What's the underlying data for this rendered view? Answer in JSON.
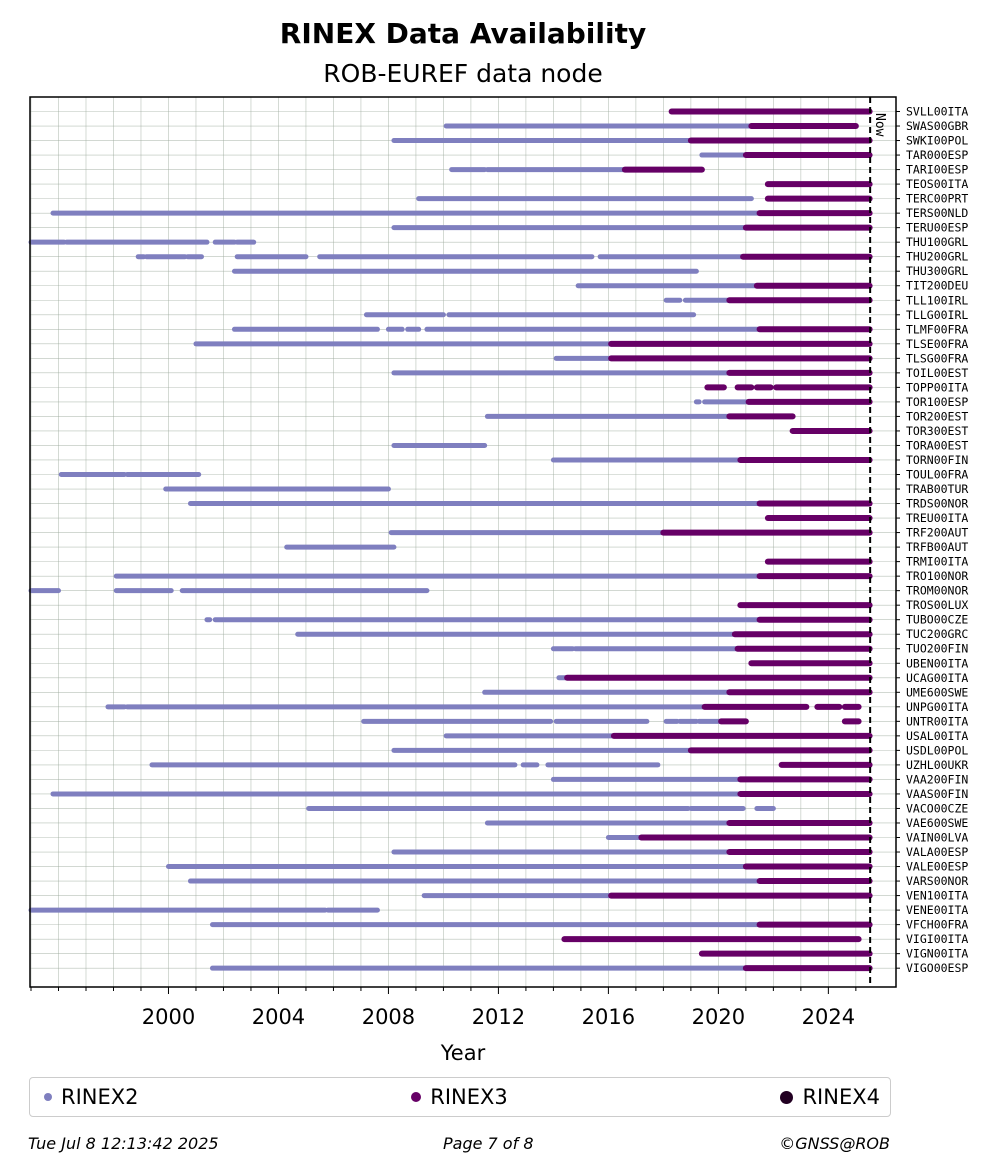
{
  "title": "RINEX Data Availability",
  "subtitle": "ROB-EUREF data node",
  "legend": [
    {
      "label": "RINEX2",
      "color": "#7f7fbf"
    },
    {
      "label": "RINEX3",
      "color": "#660066"
    },
    {
      "label": "RINEX4",
      "color": "#220022"
    }
  ],
  "footer": {
    "date": "Tue Jul  8 12:13:42 2025",
    "page": "Page 7 of 8",
    "copyright": "©GNSS@ROB"
  },
  "chart_data": {
    "type": "timeline",
    "xlabel": "Year",
    "xlim": [
      1995.0,
      2025.5
    ],
    "xticks": [
      2000,
      2004,
      2008,
      2012,
      2016,
      2020,
      2024
    ],
    "now": 2025.52,
    "now_label": "Now",
    "colors": {
      "RINEX2": "#7f7fbf",
      "RINEX3": "#660066",
      "RINEX4": "#220022"
    },
    "stations": [
      {
        "name": "SVLL00ITA",
        "segments": [
          {
            "v": "RINEX3",
            "start": 2018.3,
            "end": 2025.5
          }
        ]
      },
      {
        "name": "SWAS00GBR",
        "segments": [
          {
            "v": "RINEX2",
            "start": 2010.1,
            "end": 2021.2
          },
          {
            "v": "RINEX3",
            "start": 2021.2,
            "end": 2025.0
          }
        ]
      },
      {
        "name": "SWKI00POL",
        "segments": [
          {
            "v": "RINEX2",
            "start": 2008.2,
            "end": 2019.0
          },
          {
            "v": "RINEX3",
            "start": 2019.0,
            "end": 2025.5
          }
        ]
      },
      {
        "name": "TAR000ESP",
        "segments": [
          {
            "v": "RINEX2",
            "start": 2019.4,
            "end": 2021.0
          },
          {
            "v": "RINEX3",
            "start": 2021.0,
            "end": 2025.5
          }
        ]
      },
      {
        "name": "TARI00ESP",
        "segments": [
          {
            "v": "RINEX2",
            "start": 2010.3,
            "end": 2011.5
          },
          {
            "v": "RINEX2",
            "start": 2011.6,
            "end": 2016.6
          },
          {
            "v": "RINEX3",
            "start": 2016.6,
            "end": 2019.4
          }
        ]
      },
      {
        "name": "TEOS00ITA",
        "segments": [
          {
            "v": "RINEX3",
            "start": 2021.8,
            "end": 2025.5
          }
        ]
      },
      {
        "name": "TERC00PRT",
        "segments": [
          {
            "v": "RINEX2",
            "start": 2009.1,
            "end": 2021.2
          },
          {
            "v": "RINEX3",
            "start": 2021.8,
            "end": 2025.5
          }
        ]
      },
      {
        "name": "TERS00NLD",
        "segments": [
          {
            "v": "RINEX2",
            "start": 1995.8,
            "end": 2021.5
          },
          {
            "v": "RINEX3",
            "start": 2021.5,
            "end": 2025.5
          }
        ]
      },
      {
        "name": "TERU00ESP",
        "segments": [
          {
            "v": "RINEX2",
            "start": 2008.2,
            "end": 2021.0
          },
          {
            "v": "RINEX3",
            "start": 2021.0,
            "end": 2025.5
          }
        ]
      },
      {
        "name": "THU100GRL",
        "segments": [
          {
            "v": "RINEX2",
            "start": 1995.0,
            "end": 1996.2
          },
          {
            "v": "RINEX2",
            "start": 1996.3,
            "end": 2001.4
          },
          {
            "v": "RINEX2",
            "start": 2001.7,
            "end": 2002.4
          },
          {
            "v": "RINEX2",
            "start": 2002.5,
            "end": 2003.1
          }
        ]
      },
      {
        "name": "THU200GRL",
        "segments": [
          {
            "v": "RINEX2",
            "start": 1998.9,
            "end": 1999.1
          },
          {
            "v": "RINEX2",
            "start": 1999.2,
            "end": 2000.6
          },
          {
            "v": "RINEX2",
            "start": 2000.7,
            "end": 2001.2
          },
          {
            "v": "RINEX2",
            "start": 2002.5,
            "end": 2005.0
          },
          {
            "v": "RINEX2",
            "start": 2005.5,
            "end": 2015.4
          },
          {
            "v": "RINEX2",
            "start": 2015.7,
            "end": 2020.9
          },
          {
            "v": "RINEX3",
            "start": 2020.9,
            "end": 2025.5
          }
        ]
      },
      {
        "name": "THU300GRL",
        "segments": [
          {
            "v": "RINEX2",
            "start": 2002.4,
            "end": 2019.2
          }
        ]
      },
      {
        "name": "TIT200DEU",
        "segments": [
          {
            "v": "RINEX2",
            "start": 2014.9,
            "end": 2021.4
          },
          {
            "v": "RINEX3",
            "start": 2021.4,
            "end": 2025.5
          }
        ]
      },
      {
        "name": "TLL100IRL",
        "segments": [
          {
            "v": "RINEX2",
            "start": 2018.1,
            "end": 2018.6
          },
          {
            "v": "RINEX2",
            "start": 2018.8,
            "end": 2020.4
          },
          {
            "v": "RINEX3",
            "start": 2020.4,
            "end": 2025.5
          }
        ]
      },
      {
        "name": "TLLG00IRL",
        "segments": [
          {
            "v": "RINEX2",
            "start": 2007.2,
            "end": 2010.0
          },
          {
            "v": "RINEX2",
            "start": 2010.2,
            "end": 2019.1
          }
        ]
      },
      {
        "name": "TLMF00FRA",
        "segments": [
          {
            "v": "RINEX2",
            "start": 2002.4,
            "end": 2007.6
          },
          {
            "v": "RINEX2",
            "start": 2008.0,
            "end": 2008.5
          },
          {
            "v": "RINEX2",
            "start": 2008.7,
            "end": 2009.1
          },
          {
            "v": "RINEX2",
            "start": 2009.4,
            "end": 2021.5
          },
          {
            "v": "RINEX3",
            "start": 2021.5,
            "end": 2025.5
          }
        ]
      },
      {
        "name": "TLSE00FRA",
        "segments": [
          {
            "v": "RINEX2",
            "start": 2001.0,
            "end": 2016.1
          },
          {
            "v": "RINEX3",
            "start": 2016.1,
            "end": 2025.5
          }
        ]
      },
      {
        "name": "TLSG00FRA",
        "segments": [
          {
            "v": "RINEX2",
            "start": 2014.1,
            "end": 2016.1
          },
          {
            "v": "RINEX3",
            "start": 2016.1,
            "end": 2025.5
          }
        ]
      },
      {
        "name": "TOIL00EST",
        "segments": [
          {
            "v": "RINEX2",
            "start": 2008.2,
            "end": 2020.4
          },
          {
            "v": "RINEX3",
            "start": 2020.4,
            "end": 2025.5
          }
        ]
      },
      {
        "name": "TOPP00ITA",
        "segments": [
          {
            "v": "RINEX3",
            "start": 2019.6,
            "end": 2020.2
          },
          {
            "v": "RINEX3",
            "start": 2020.7,
            "end": 2021.2
          },
          {
            "v": "RINEX3",
            "start": 2021.4,
            "end": 2021.9
          },
          {
            "v": "RINEX3",
            "start": 2022.1,
            "end": 2025.5
          }
        ]
      },
      {
        "name": "TOR100ESP",
        "segments": [
          {
            "v": "RINEX2",
            "start": 2019.2,
            "end": 2019.3
          },
          {
            "v": "RINEX2",
            "start": 2019.5,
            "end": 2021.1
          },
          {
            "v": "RINEX3",
            "start": 2021.1,
            "end": 2025.5
          }
        ]
      },
      {
        "name": "TOR200EST",
        "segments": [
          {
            "v": "RINEX2",
            "start": 2011.6,
            "end": 2020.4
          },
          {
            "v": "RINEX3",
            "start": 2020.4,
            "end": 2022.7
          }
        ]
      },
      {
        "name": "TOR300EST",
        "segments": [
          {
            "v": "RINEX3",
            "start": 2022.7,
            "end": 2025.5
          }
        ]
      },
      {
        "name": "TORA00EST",
        "segments": [
          {
            "v": "RINEX2",
            "start": 2008.2,
            "end": 2011.5
          }
        ]
      },
      {
        "name": "TORN00FIN",
        "segments": [
          {
            "v": "RINEX2",
            "start": 2014.0,
            "end": 2020.8
          },
          {
            "v": "RINEX3",
            "start": 2020.8,
            "end": 2025.5
          }
        ]
      },
      {
        "name": "TOUL00FRA",
        "segments": [
          {
            "v": "RINEX2",
            "start": 1996.1,
            "end": 1998.4
          },
          {
            "v": "RINEX2",
            "start": 1998.5,
            "end": 2001.1
          }
        ]
      },
      {
        "name": "TRAB00TUR",
        "segments": [
          {
            "v": "RINEX2",
            "start": 1999.9,
            "end": 2008.0
          }
        ]
      },
      {
        "name": "TRDS00NOR",
        "segments": [
          {
            "v": "RINEX2",
            "start": 2000.8,
            "end": 2021.5
          },
          {
            "v": "RINEX3",
            "start": 2021.5,
            "end": 2025.5
          }
        ]
      },
      {
        "name": "TREU00ITA",
        "segments": [
          {
            "v": "RINEX3",
            "start": 2021.8,
            "end": 2025.5
          }
        ]
      },
      {
        "name": "TRF200AUT",
        "segments": [
          {
            "v": "RINEX2",
            "start": 2008.1,
            "end": 2018.0
          },
          {
            "v": "RINEX3",
            "start": 2018.0,
            "end": 2025.5
          }
        ]
      },
      {
        "name": "TRFB00AUT",
        "segments": [
          {
            "v": "RINEX2",
            "start": 2004.3,
            "end": 2008.2
          }
        ]
      },
      {
        "name": "TRMI00ITA",
        "segments": [
          {
            "v": "RINEX3",
            "start": 2021.8,
            "end": 2025.5
          }
        ]
      },
      {
        "name": "TRO100NOR",
        "segments": [
          {
            "v": "RINEX2",
            "start": 1998.1,
            "end": 2021.5
          },
          {
            "v": "RINEX3",
            "start": 2021.5,
            "end": 2025.5
          }
        ]
      },
      {
        "name": "TROM00NOR",
        "segments": [
          {
            "v": "RINEX2",
            "start": 1995.0,
            "end": 1996.0
          },
          {
            "v": "RINEX2",
            "start": 1998.1,
            "end": 2000.1
          },
          {
            "v": "RINEX2",
            "start": 2000.5,
            "end": 2009.4
          }
        ]
      },
      {
        "name": "TROS00LUX",
        "segments": [
          {
            "v": "RINEX3",
            "start": 2020.8,
            "end": 2025.5
          }
        ]
      },
      {
        "name": "TUBO00CZE",
        "segments": [
          {
            "v": "RINEX2",
            "start": 2001.4,
            "end": 2001.5
          },
          {
            "v": "RINEX2",
            "start": 2001.7,
            "end": 2021.5
          },
          {
            "v": "RINEX3",
            "start": 2021.5,
            "end": 2025.5
          }
        ]
      },
      {
        "name": "TUC200GRC",
        "segments": [
          {
            "v": "RINEX2",
            "start": 2004.7,
            "end": 2020.6
          },
          {
            "v": "RINEX3",
            "start": 2020.6,
            "end": 2025.5
          }
        ]
      },
      {
        "name": "TUO200FIN",
        "segments": [
          {
            "v": "RINEX2",
            "start": 2014.0,
            "end": 2014.7
          },
          {
            "v": "RINEX2",
            "start": 2014.8,
            "end": 2020.7
          },
          {
            "v": "RINEX3",
            "start": 2020.7,
            "end": 2025.5
          }
        ]
      },
      {
        "name": "UBEN00ITA",
        "segments": [
          {
            "v": "RINEX3",
            "start": 2021.2,
            "end": 2025.5
          }
        ]
      },
      {
        "name": "UCAG00ITA",
        "segments": [
          {
            "v": "RINEX2",
            "start": 2014.2,
            "end": 2014.5
          },
          {
            "v": "RINEX3",
            "start": 2014.5,
            "end": 2025.5
          }
        ]
      },
      {
        "name": "UME600SWE",
        "segments": [
          {
            "v": "RINEX2",
            "start": 2011.5,
            "end": 2020.4
          },
          {
            "v": "RINEX3",
            "start": 2020.4,
            "end": 2025.5
          }
        ]
      },
      {
        "name": "UNPG00ITA",
        "segments": [
          {
            "v": "RINEX2",
            "start": 1997.8,
            "end": 1998.4
          },
          {
            "v": "RINEX2",
            "start": 1998.5,
            "end": 2019.5
          },
          {
            "v": "RINEX3",
            "start": 2019.5,
            "end": 2023.2
          },
          {
            "v": "RINEX3",
            "start": 2023.6,
            "end": 2024.4
          },
          {
            "v": "RINEX3",
            "start": 2024.6,
            "end": 2025.1
          }
        ]
      },
      {
        "name": "UNTR00ITA",
        "segments": [
          {
            "v": "RINEX2",
            "start": 2007.1,
            "end": 2013.9
          },
          {
            "v": "RINEX2",
            "start": 2014.1,
            "end": 2017.4
          },
          {
            "v": "RINEX2",
            "start": 2018.1,
            "end": 2018.5
          },
          {
            "v": "RINEX2",
            "start": 2018.6,
            "end": 2019.2
          },
          {
            "v": "RINEX2",
            "start": 2019.3,
            "end": 2020.1
          },
          {
            "v": "RINEX3",
            "start": 2020.1,
            "end": 2021.0
          },
          {
            "v": "RINEX3",
            "start": 2024.6,
            "end": 2025.1
          }
        ]
      },
      {
        "name": "USAL00ITA",
        "segments": [
          {
            "v": "RINEX2",
            "start": 2010.1,
            "end": 2016.2
          },
          {
            "v": "RINEX3",
            "start": 2016.2,
            "end": 2025.5
          }
        ]
      },
      {
        "name": "USDL00POL",
        "segments": [
          {
            "v": "RINEX2",
            "start": 2008.2,
            "end": 2019.0
          },
          {
            "v": "RINEX3",
            "start": 2019.0,
            "end": 2025.5
          }
        ]
      },
      {
        "name": "UZHL00UKR",
        "segments": [
          {
            "v": "RINEX2",
            "start": 1999.4,
            "end": 2012.6
          },
          {
            "v": "RINEX2",
            "start": 2012.9,
            "end": 2013.4
          },
          {
            "v": "RINEX2",
            "start": 2013.8,
            "end": 2017.8
          },
          {
            "v": "RINEX3",
            "start": 2022.3,
            "end": 2025.5
          }
        ]
      },
      {
        "name": "VAA200FIN",
        "segments": [
          {
            "v": "RINEX2",
            "start": 2014.0,
            "end": 2020.8
          },
          {
            "v": "RINEX3",
            "start": 2020.8,
            "end": 2025.5
          }
        ]
      },
      {
        "name": "VAAS00FIN",
        "segments": [
          {
            "v": "RINEX2",
            "start": 1995.8,
            "end": 2020.8
          },
          {
            "v": "RINEX3",
            "start": 2020.8,
            "end": 2025.5
          }
        ]
      },
      {
        "name": "VACO00CZE",
        "segments": [
          {
            "v": "RINEX2",
            "start": 2005.1,
            "end": 2018.9
          },
          {
            "v": "RINEX2",
            "start": 2019.0,
            "end": 2020.9
          },
          {
            "v": "RINEX2",
            "start": 2021.4,
            "end": 2022.0
          }
        ]
      },
      {
        "name": "VAE600SWE",
        "segments": [
          {
            "v": "RINEX2",
            "start": 2011.6,
            "end": 2020.4
          },
          {
            "v": "RINEX3",
            "start": 2020.4,
            "end": 2025.5
          }
        ]
      },
      {
        "name": "VAIN00LVA",
        "segments": [
          {
            "v": "RINEX2",
            "start": 2016.0,
            "end": 2017.2
          },
          {
            "v": "RINEX3",
            "start": 2017.2,
            "end": 2025.5
          }
        ]
      },
      {
        "name": "VALA00ESP",
        "segments": [
          {
            "v": "RINEX2",
            "start": 2008.2,
            "end": 2020.4
          },
          {
            "v": "RINEX3",
            "start": 2020.4,
            "end": 2025.5
          }
        ]
      },
      {
        "name": "VALE00ESP",
        "segments": [
          {
            "v": "RINEX2",
            "start": 2000.0,
            "end": 2021.0
          },
          {
            "v": "RINEX3",
            "start": 2021.0,
            "end": 2025.5
          }
        ]
      },
      {
        "name": "VARS00NOR",
        "segments": [
          {
            "v": "RINEX2",
            "start": 2000.8,
            "end": 2021.5
          },
          {
            "v": "RINEX3",
            "start": 2021.5,
            "end": 2025.5
          }
        ]
      },
      {
        "name": "VEN100ITA",
        "segments": [
          {
            "v": "RINEX2",
            "start": 2009.3,
            "end": 2016.1
          },
          {
            "v": "RINEX3",
            "start": 2016.1,
            "end": 2025.5
          }
        ]
      },
      {
        "name": "VENE00ITA",
        "segments": [
          {
            "v": "RINEX2",
            "start": 1995.0,
            "end": 2005.7
          },
          {
            "v": "RINEX2",
            "start": 2005.8,
            "end": 2007.6
          }
        ]
      },
      {
        "name": "VFCH00FRA",
        "segments": [
          {
            "v": "RINEX2",
            "start": 2001.6,
            "end": 2021.5
          },
          {
            "v": "RINEX3",
            "start": 2021.5,
            "end": 2025.5
          }
        ]
      },
      {
        "name": "VIGI00ITA",
        "segments": [
          {
            "v": "RINEX3",
            "start": 2014.4,
            "end": 2025.1
          }
        ]
      },
      {
        "name": "VIGN00ITA",
        "segments": [
          {
            "v": "RINEX3",
            "start": 2019.4,
            "end": 2025.5
          }
        ]
      },
      {
        "name": "VIGO00ESP",
        "segments": [
          {
            "v": "RINEX2",
            "start": 2001.6,
            "end": 2021.0
          },
          {
            "v": "RINEX3",
            "start": 2021.0,
            "end": 2025.5
          }
        ]
      }
    ]
  }
}
